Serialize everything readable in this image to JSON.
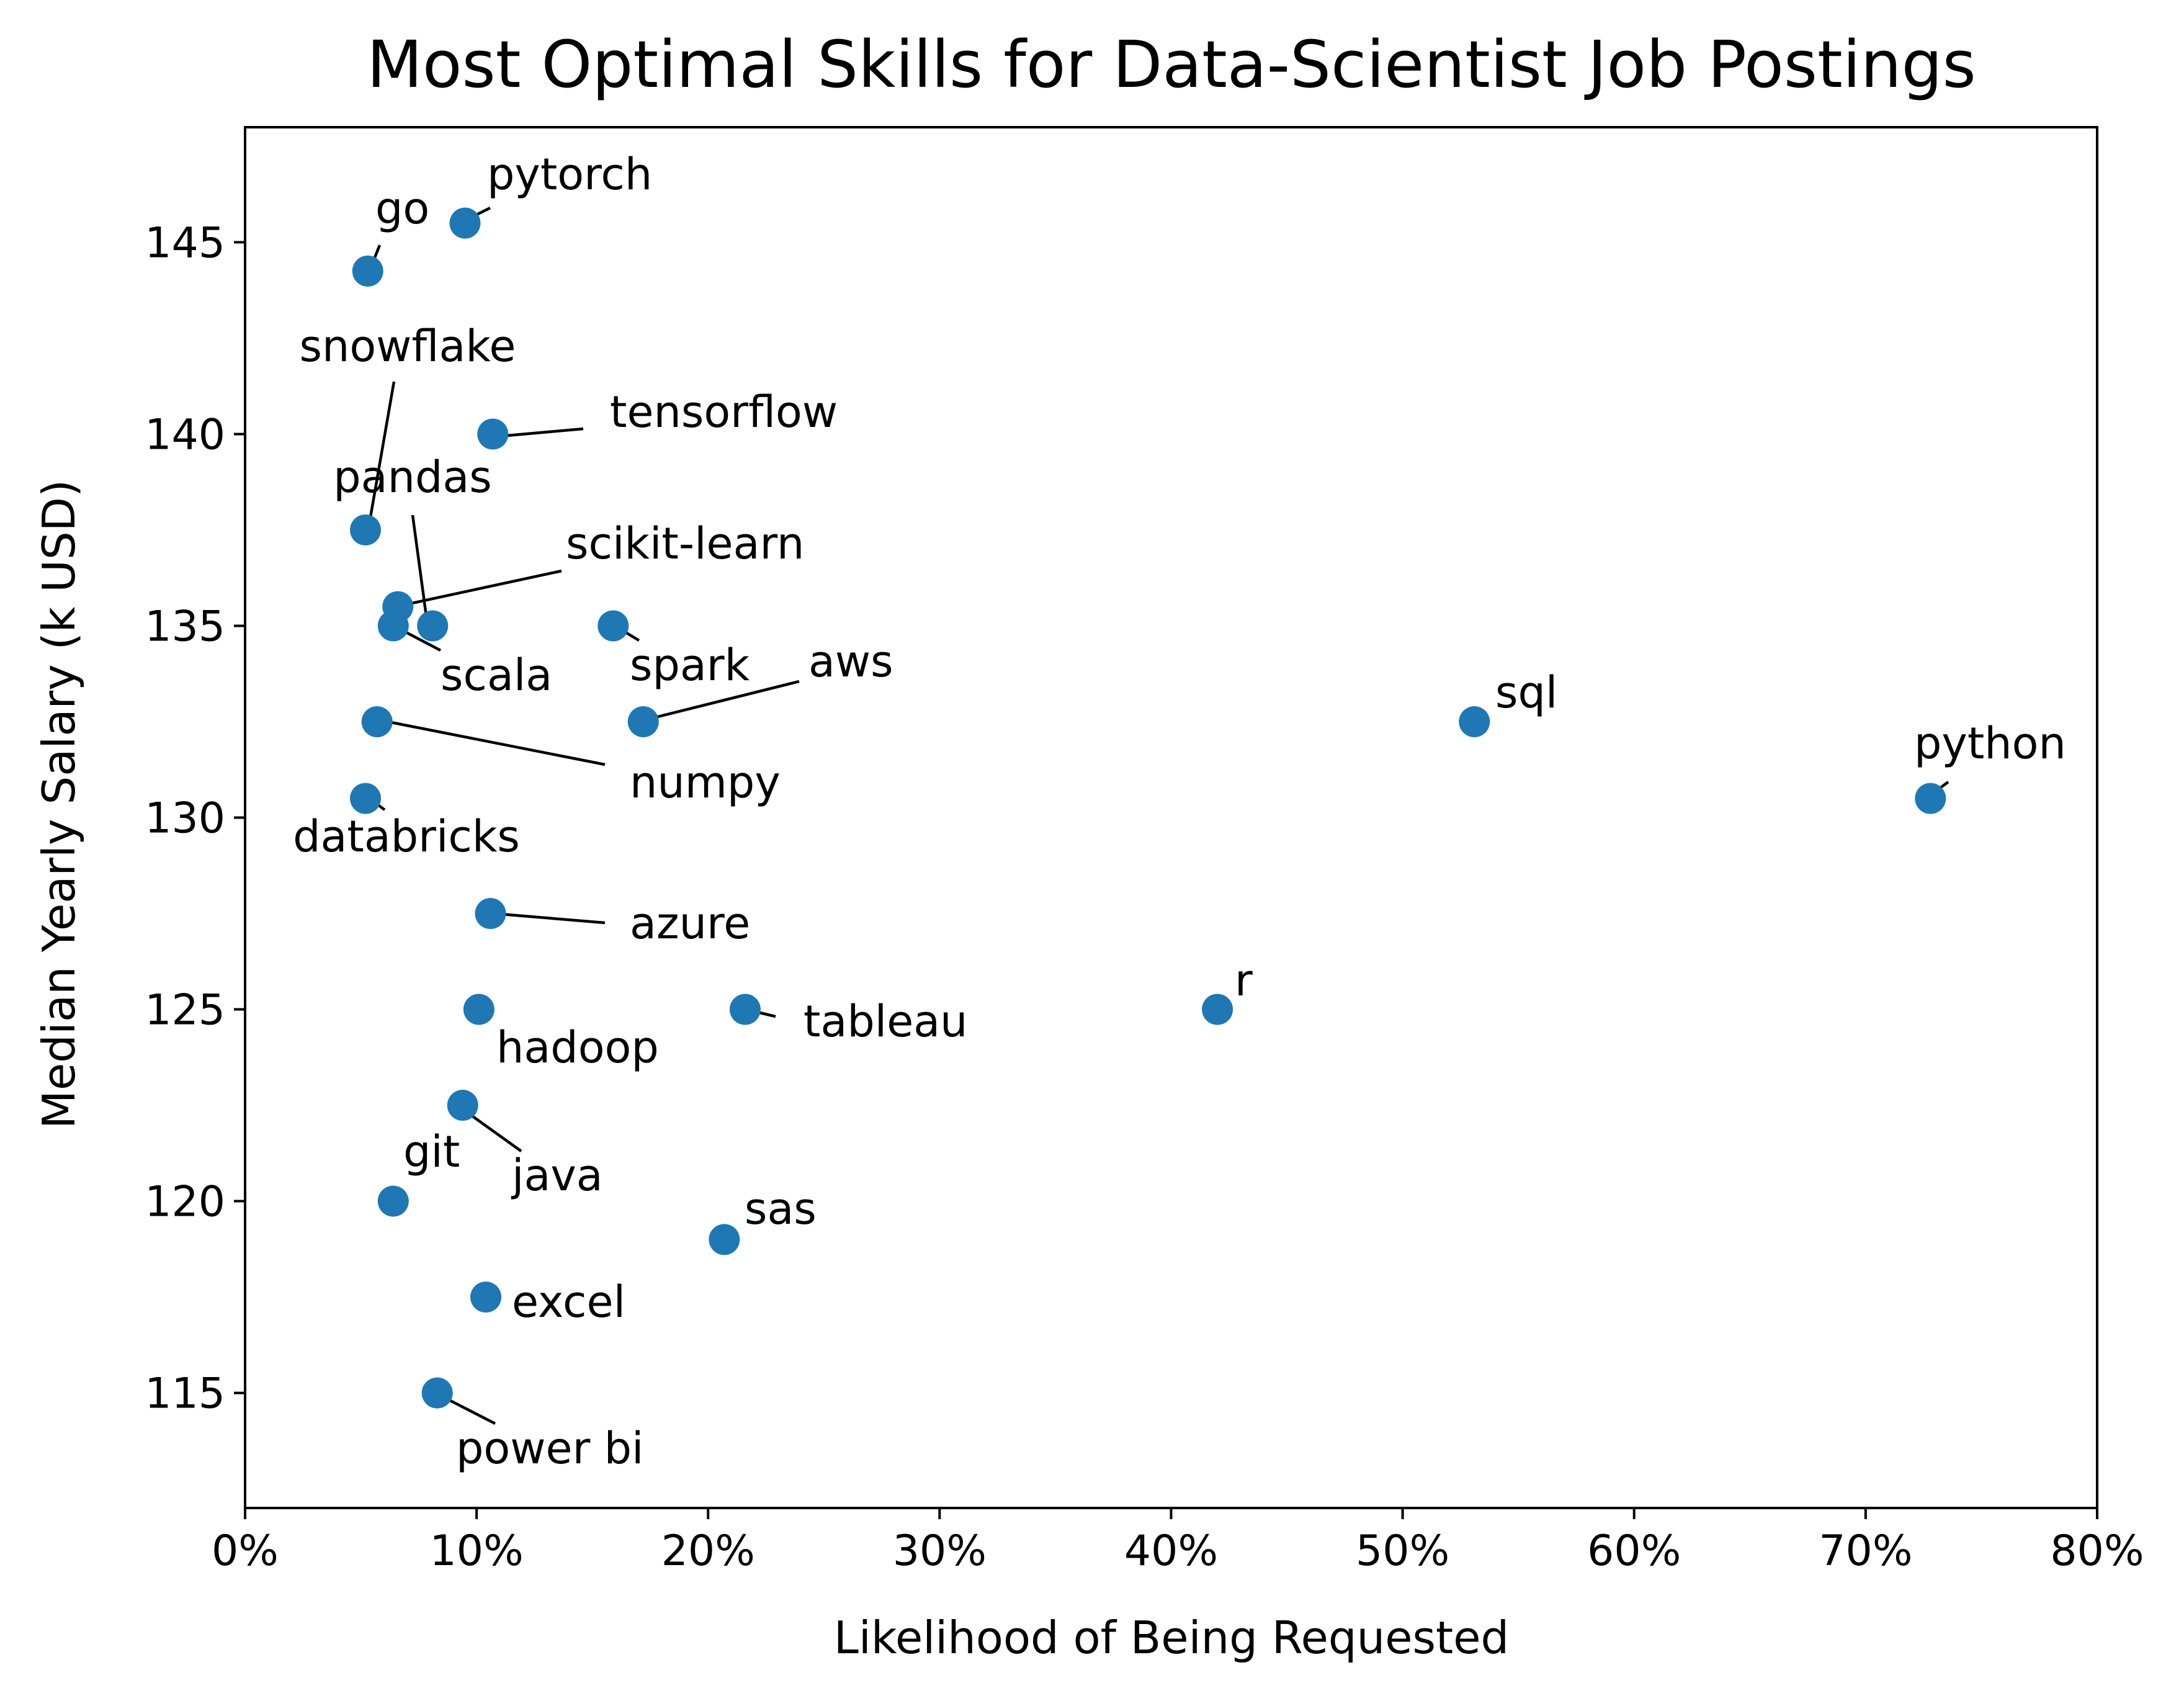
{
  "chart_data": {
    "type": "scatter",
    "title": "Most Optimal Skills for Data-Scientist Job Postings",
    "xlabel": "Likelihood of Being Requested",
    "ylabel": "Median Yearly Salary (k USD)",
    "xlim": [
      0,
      80
    ],
    "ylim": [
      112,
      148
    ],
    "x_ticks": [
      "0%",
      "10%",
      "20%",
      "30%",
      "40%",
      "50%",
      "60%",
      "70%",
      "80%"
    ],
    "y_ticks": [
      "115",
      "120",
      "125",
      "130",
      "135",
      "140",
      "145"
    ],
    "grid": false,
    "marker_color": "#1f77b4",
    "points": [
      {
        "label": "python",
        "x": 72.8,
        "y": 130.5
      },
      {
        "label": "sql",
        "x": 53.1,
        "y": 132.5
      },
      {
        "label": "r",
        "x": 42.0,
        "y": 125.0
      },
      {
        "label": "tableau",
        "x": 21.6,
        "y": 125.0
      },
      {
        "label": "sas",
        "x": 20.7,
        "y": 119.0
      },
      {
        "label": "aws",
        "x": 17.2,
        "y": 132.5
      },
      {
        "label": "spark",
        "x": 15.9,
        "y": 135.0
      },
      {
        "label": "tensorflow",
        "x": 10.7,
        "y": 140.0
      },
      {
        "label": "azure",
        "x": 10.6,
        "y": 127.5
      },
      {
        "label": "excel",
        "x": 10.4,
        "y": 117.5
      },
      {
        "label": "hadoop",
        "x": 10.1,
        "y": 125.0
      },
      {
        "label": "java",
        "x": 9.4,
        "y": 122.5
      },
      {
        "label": "pytorch",
        "x": 9.5,
        "y": 145.5
      },
      {
        "label": "power bi",
        "x": 8.3,
        "y": 115.0
      },
      {
        "label": "pandas",
        "x": 8.1,
        "y": 135.0
      },
      {
        "label": "scikit-learn",
        "x": 6.6,
        "y": 135.5
      },
      {
        "label": "scala",
        "x": 6.4,
        "y": 135.0
      },
      {
        "label": "git",
        "x": 6.4,
        "y": 120.0
      },
      {
        "label": "numpy",
        "x": 5.7,
        "y": 132.5
      },
      {
        "label": "go",
        "x": 5.3,
        "y": 144.25
      },
      {
        "label": "snowflake",
        "x": 5.2,
        "y": 137.5
      },
      {
        "label": "databricks",
        "x": 5.2,
        "y": 130.5
      }
    ]
  }
}
